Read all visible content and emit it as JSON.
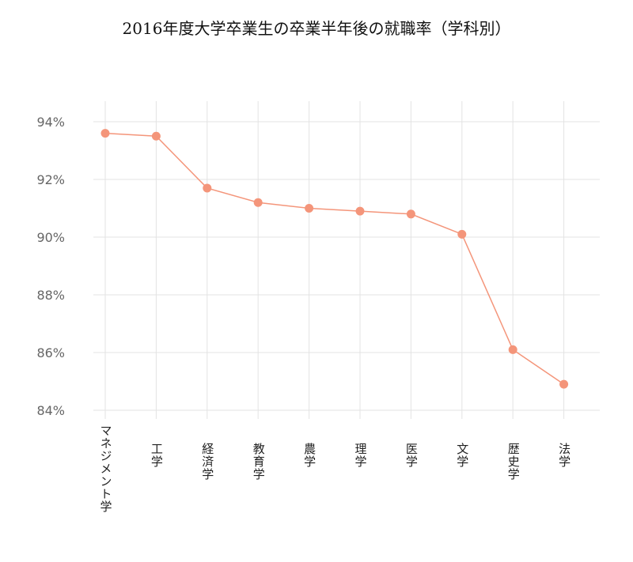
{
  "chart_data": {
    "type": "line",
    "title": "2016年度大学卒業生の卒業半年後の就職率（学科別）",
    "categories": [
      "マネジメント学",
      "工学",
      "経済学",
      "教育学",
      "農学",
      "理学",
      "医学",
      "文学",
      "歴史学",
      "法学"
    ],
    "values": [
      93.6,
      93.5,
      91.7,
      91.2,
      91.0,
      90.9,
      90.8,
      90.1,
      86.1,
      84.9
    ],
    "ylim": [
      84,
      94
    ],
    "yticks": [
      84,
      86,
      88,
      90,
      92,
      94
    ],
    "ytick_labels": [
      "84%",
      "86%",
      "88%",
      "90%",
      "92%",
      "94%"
    ],
    "xlabel": "",
    "ylabel": "",
    "grid": true,
    "color": "#f4957a"
  }
}
